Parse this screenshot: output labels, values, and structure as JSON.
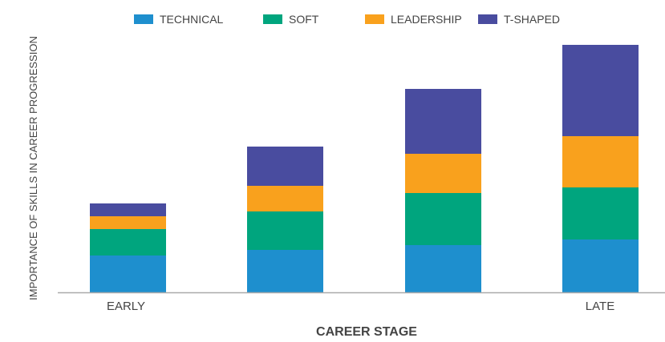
{
  "chart_data": {
    "type": "bar",
    "stacked": true,
    "title": "",
    "xlabel": "CAREER STAGE",
    "ylabel": "IMPORTANCE OF SKILLS IN CAREER PROGRESSION",
    "categories": [
      "EARLY",
      "",
      "",
      "LATE"
    ],
    "series": [
      {
        "name": "TECHNICAL",
        "color": "#1e8fce",
        "values": [
          46,
          53,
          59,
          66
        ]
      },
      {
        "name": "SOFT",
        "color": "#00a57e",
        "values": [
          33,
          48,
          65,
          65
        ]
      },
      {
        "name": "LEADERSHIP",
        "color": "#f9a11d",
        "values": [
          16,
          32,
          49,
          64
        ]
      },
      {
        "name": "T-SHAPED",
        "color": "#494c9f",
        "values": [
          16,
          49,
          81,
          114
        ]
      }
    ],
    "ylim": [
      0,
      309
    ],
    "grid": false,
    "legend_position": "top"
  }
}
